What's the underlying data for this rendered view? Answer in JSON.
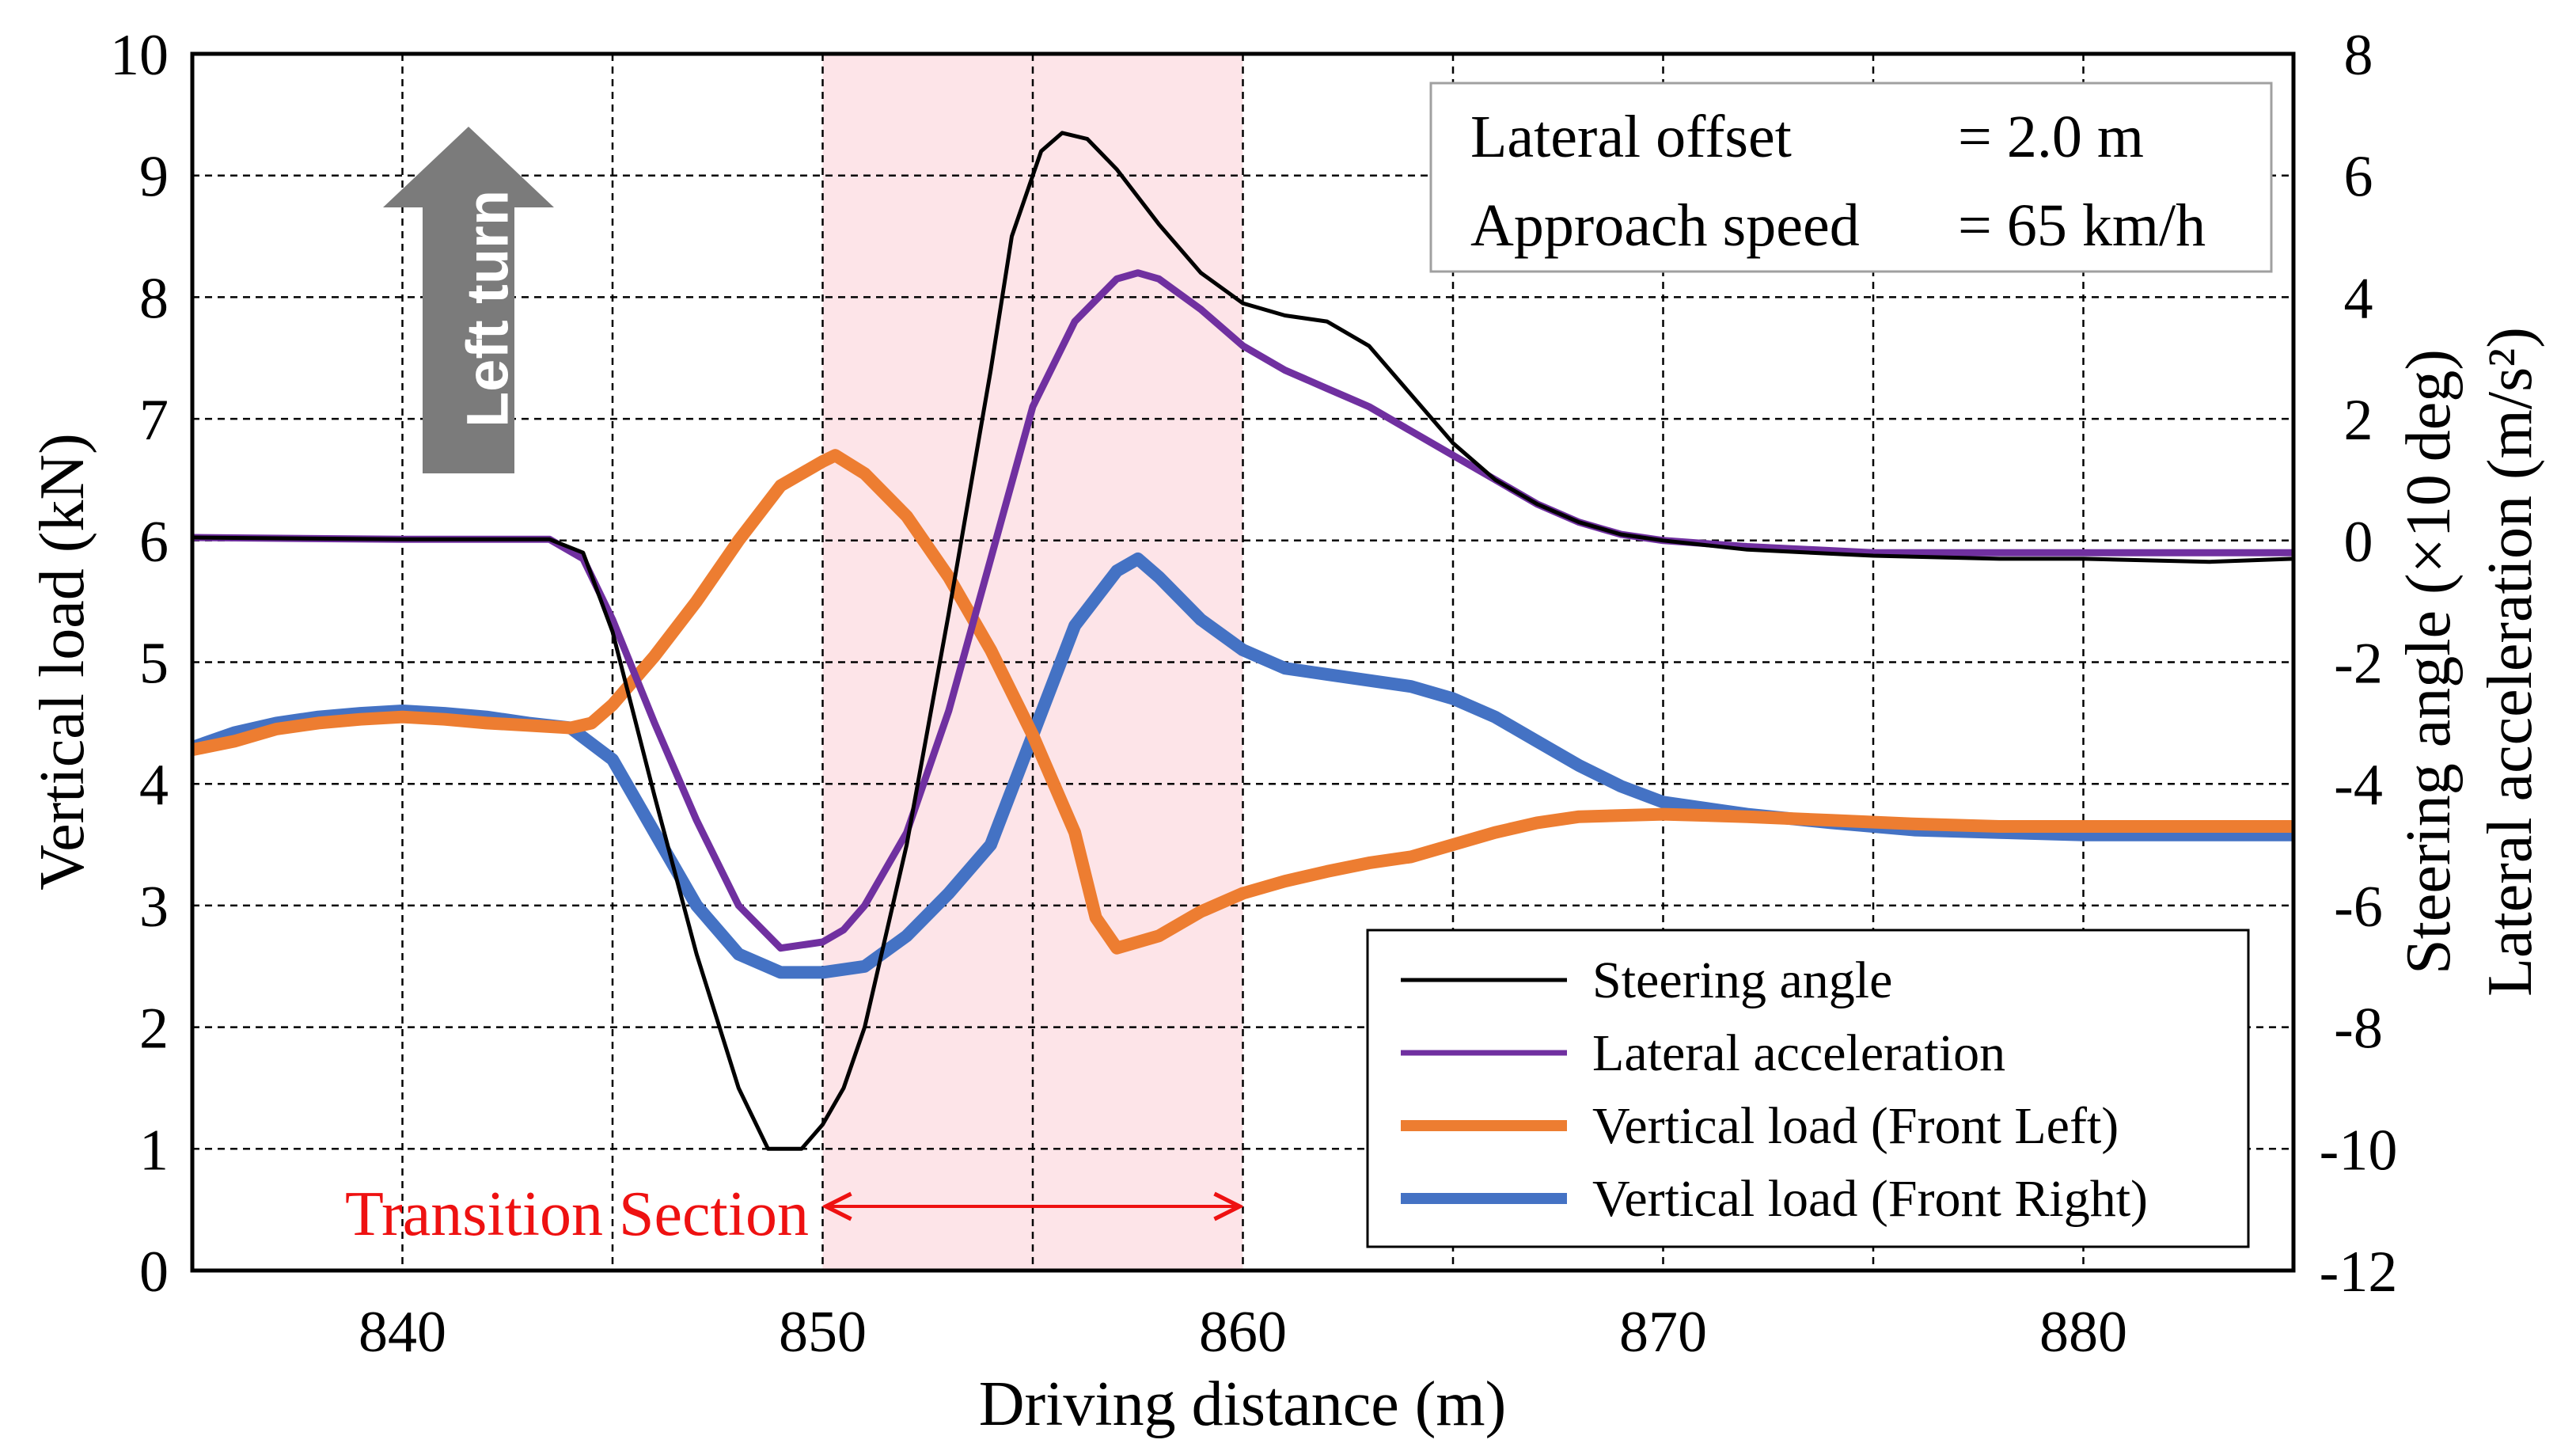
{
  "chart_data": {
    "type": "line",
    "xlabel": "Driving distance (m)",
    "ylabel_left": "Vertical load (kN)",
    "ylabel_right_1": "Steering angle (×10 deg)",
    "ylabel_right_2": "Lateral acceleration (m/s²)",
    "xlim": [
      835,
      885
    ],
    "ylim_left": [
      0,
      10
    ],
    "ylim_right": [
      -12,
      8
    ],
    "x_ticks": [
      840,
      850,
      860,
      870,
      880
    ],
    "y_left_ticks": [
      0,
      1,
      2,
      3,
      4,
      5,
      6,
      7,
      8,
      9,
      10
    ],
    "y_right_ticks": [
      -12,
      -10,
      -8,
      -6,
      -4,
      -2,
      0,
      2,
      4,
      6,
      8
    ],
    "grid": true,
    "legend_position": "bottom-right",
    "transition_section": {
      "label": "Transition Section",
      "x_start": 850,
      "x_end": 860,
      "shade_color": "#fde4e8",
      "label_color": "#ee1111"
    },
    "info": {
      "line1_label": "Lateral offset",
      "line1_value": "= 2.0 m",
      "line2_label": "Approach speed",
      "line2_value": "= 65 km/h"
    },
    "annotation_arrow": {
      "label": "Left turn",
      "color": "#7b7b7b"
    },
    "series": [
      {
        "name": "Steering angle",
        "axis": "right",
        "color": "#000000",
        "points": [
          [
            835,
            0.05
          ],
          [
            840,
            0.02
          ],
          [
            843.5,
            0.02
          ],
          [
            844.3,
            -0.2
          ],
          [
            845,
            -1.5
          ],
          [
            846,
            -4.2
          ],
          [
            847,
            -6.8
          ],
          [
            848,
            -9.0
          ],
          [
            848.7,
            -10.0
          ],
          [
            849.5,
            -10.0
          ],
          [
            850,
            -9.6
          ],
          [
            850.5,
            -9.0
          ],
          [
            851,
            -8.0
          ],
          [
            852,
            -5.0
          ],
          [
            853,
            -1.2
          ],
          [
            854,
            2.8
          ],
          [
            854.5,
            5.0
          ],
          [
            855.2,
            6.4
          ],
          [
            855.7,
            6.7
          ],
          [
            856.3,
            6.6
          ],
          [
            857,
            6.1
          ],
          [
            858,
            5.2
          ],
          [
            859,
            4.4
          ],
          [
            860,
            3.9
          ],
          [
            861,
            3.7
          ],
          [
            862,
            3.6
          ],
          [
            863,
            3.2
          ],
          [
            864,
            2.4
          ],
          [
            865,
            1.6
          ],
          [
            866,
            1.0
          ],
          [
            867,
            0.6
          ],
          [
            868,
            0.3
          ],
          [
            869,
            0.1
          ],
          [
            870,
            0.0
          ],
          [
            872,
            -0.15
          ],
          [
            875,
            -0.25
          ],
          [
            878,
            -0.3
          ],
          [
            880,
            -0.3
          ],
          [
            883,
            -0.35
          ],
          [
            885,
            -0.3
          ]
        ]
      },
      {
        "name": "Lateral acceleration",
        "axis": "right",
        "color": "#7030a0",
        "points": [
          [
            835,
            0.05
          ],
          [
            840,
            0.02
          ],
          [
            843.5,
            0.02
          ],
          [
            844.3,
            -0.3
          ],
          [
            845,
            -1.3
          ],
          [
            846,
            -3.0
          ],
          [
            847,
            -4.6
          ],
          [
            848,
            -6.0
          ],
          [
            849,
            -6.7
          ],
          [
            850,
            -6.6
          ],
          [
            850.5,
            -6.4
          ],
          [
            851,
            -6.0
          ],
          [
            852,
            -4.8
          ],
          [
            853,
            -2.8
          ],
          [
            854,
            -0.3
          ],
          [
            855,
            2.2
          ],
          [
            856,
            3.6
          ],
          [
            857,
            4.3
          ],
          [
            857.5,
            4.4
          ],
          [
            858,
            4.3
          ],
          [
            859,
            3.8
          ],
          [
            860,
            3.2
          ],
          [
            861,
            2.8
          ],
          [
            862,
            2.5
          ],
          [
            863,
            2.2
          ],
          [
            864,
            1.8
          ],
          [
            865,
            1.4
          ],
          [
            866,
            1.0
          ],
          [
            867,
            0.6
          ],
          [
            868,
            0.3
          ],
          [
            869,
            0.1
          ],
          [
            870,
            0.0
          ],
          [
            872,
            -0.1
          ],
          [
            875,
            -0.2
          ],
          [
            880,
            -0.2
          ],
          [
            885,
            -0.2
          ]
        ]
      },
      {
        "name": "Vertical load (Front Left)",
        "axis": "left",
        "color": "#ed7d31",
        "points": [
          [
            835,
            4.28
          ],
          [
            836,
            4.35
          ],
          [
            837,
            4.45
          ],
          [
            838,
            4.5
          ],
          [
            839,
            4.53
          ],
          [
            840,
            4.55
          ],
          [
            841,
            4.53
          ],
          [
            842,
            4.5
          ],
          [
            843,
            4.48
          ],
          [
            844,
            4.46
          ],
          [
            844.5,
            4.5
          ],
          [
            845,
            4.65
          ],
          [
            846,
            5.05
          ],
          [
            847,
            5.5
          ],
          [
            848,
            6.0
          ],
          [
            849,
            6.45
          ],
          [
            850,
            6.65
          ],
          [
            850.3,
            6.7
          ],
          [
            851,
            6.55
          ],
          [
            852,
            6.2
          ],
          [
            853,
            5.7
          ],
          [
            854,
            5.1
          ],
          [
            855,
            4.4
          ],
          [
            856,
            3.6
          ],
          [
            856.5,
            2.9
          ],
          [
            857,
            2.65
          ],
          [
            858,
            2.75
          ],
          [
            859,
            2.95
          ],
          [
            860,
            3.1
          ],
          [
            861,
            3.2
          ],
          [
            862,
            3.28
          ],
          [
            863,
            3.35
          ],
          [
            864,
            3.4
          ],
          [
            865,
            3.5
          ],
          [
            866,
            3.6
          ],
          [
            867,
            3.68
          ],
          [
            868,
            3.73
          ],
          [
            870,
            3.75
          ],
          [
            872,
            3.73
          ],
          [
            874,
            3.7
          ],
          [
            876,
            3.67
          ],
          [
            878,
            3.65
          ],
          [
            880,
            3.65
          ],
          [
            885,
            3.65
          ]
        ]
      },
      {
        "name": "Vertical load (Front Right)",
        "axis": "left",
        "color": "#4472c4",
        "points": [
          [
            835,
            4.3
          ],
          [
            836,
            4.42
          ],
          [
            837,
            4.5
          ],
          [
            838,
            4.55
          ],
          [
            839,
            4.58
          ],
          [
            840,
            4.6
          ],
          [
            841,
            4.58
          ],
          [
            842,
            4.55
          ],
          [
            843,
            4.5
          ],
          [
            844,
            4.46
          ],
          [
            845,
            4.2
          ],
          [
            846,
            3.6
          ],
          [
            847,
            3.0
          ],
          [
            848,
            2.6
          ],
          [
            849,
            2.45
          ],
          [
            850,
            2.45
          ],
          [
            851,
            2.5
          ],
          [
            852,
            2.75
          ],
          [
            853,
            3.1
          ],
          [
            854,
            3.5
          ],
          [
            855,
            4.4
          ],
          [
            856,
            5.3
          ],
          [
            857,
            5.75
          ],
          [
            857.5,
            5.85
          ],
          [
            858,
            5.7
          ],
          [
            859,
            5.35
          ],
          [
            860,
            5.1
          ],
          [
            861,
            4.95
          ],
          [
            862,
            4.9
          ],
          [
            863,
            4.85
          ],
          [
            864,
            4.8
          ],
          [
            865,
            4.7
          ],
          [
            866,
            4.55
          ],
          [
            867,
            4.35
          ],
          [
            868,
            4.15
          ],
          [
            869,
            3.98
          ],
          [
            870,
            3.85
          ],
          [
            872,
            3.75
          ],
          [
            874,
            3.68
          ],
          [
            876,
            3.62
          ],
          [
            878,
            3.6
          ],
          [
            880,
            3.58
          ],
          [
            885,
            3.58
          ]
        ]
      }
    ]
  }
}
